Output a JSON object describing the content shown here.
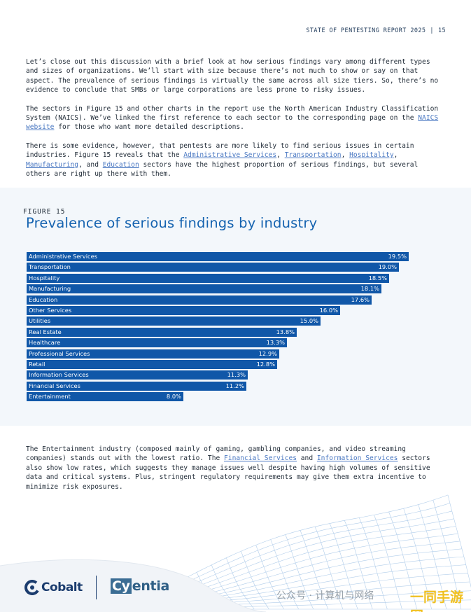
{
  "header": {
    "report": "STATE OF PENTESTING REPORT 2025",
    "separator": "|",
    "page": "15"
  },
  "paragraphs": {
    "p1": "Let’s close out this discussion with a brief look at how serious findings vary among different types and sizes of organizations. We’ll start with size because there’s not much to show or say on that aspect. The prevalence of serious findings is virtually the same across all size tiers. So, there’s no evidence to conclude that SMBs or large corporations are less prone to risky issues.",
    "p2_a": "The sectors in Figure 15 and other charts in the report use the North American Industry Classification System (NAICS). We’ve linked the first reference to each sector to the corresponding page on the ",
    "p2_link": "NAICS website",
    "p2_b": " for those who want more detailed descriptions.",
    "p3_a": "There is some evidence, however, that pentests are more likely to find serious issues in certain industries. Figure 15 reveals that the ",
    "p3_link1": "Administrative Services",
    "p3_sep1": ", ",
    "p3_link2": "Transportation",
    "p3_sep2": ", ",
    "p3_link3": "Hospitality",
    "p3_sep3": ", ",
    "p3_link4": "Manufacturing",
    "p3_sep4": ", and ",
    "p3_link5": "Education",
    "p3_b": " sectors have the highest proportion of serious findings, but several others are right up there with them.",
    "p4_a": "The Entertainment industry (composed mainly of gaming, gambling companies, and video streaming companies) stands out with the lowest ratio. The ",
    "p4_link1": "Financial Services",
    "p4_mid": " and ",
    "p4_link2": "Information Services",
    "p4_b": " sectors also show low rates, which suggests they manage issues well despite having high volumes of sensitive data and critical systems. Plus, stringent regulatory requirements may give them extra incentive to minimize risk exposures."
  },
  "figure": {
    "label": "FIGURE 15",
    "title": "Prevalence of serious findings by industry"
  },
  "chart_data": {
    "type": "bar",
    "orientation": "horizontal",
    "categories": [
      "Administrative Services",
      "Transportation",
      "Hospitality",
      "Manufacturing",
      "Education",
      "Other Services",
      "Utilities",
      "Real Estate",
      "Healthcare",
      "Professional Services",
      "Retail",
      "Information Services",
      "Financial Services",
      "Entertainment"
    ],
    "values": [
      19.5,
      19.0,
      18.5,
      18.1,
      17.6,
      16.0,
      15.0,
      13.8,
      13.3,
      12.9,
      12.8,
      11.3,
      11.2,
      8.0
    ],
    "value_labels": [
      "19.5%",
      "19.0%",
      "18.5%",
      "18.1%",
      "17.6%",
      "16.0%",
      "15.0%",
      "13.8%",
      "13.3%",
      "12.9%",
      "12.8%",
      "11.3%",
      "11.2%",
      "8.0%"
    ],
    "xlim": [
      0,
      20
    ],
    "grid": false,
    "bar_color": "#1057a8"
  },
  "footer": {
    "logo1": "Cobalt",
    "logo2_box": "Cy",
    "logo2_rest": "entia",
    "watermark": "公众号 · 计算机与网络",
    "watermark2": "一同手游网"
  }
}
